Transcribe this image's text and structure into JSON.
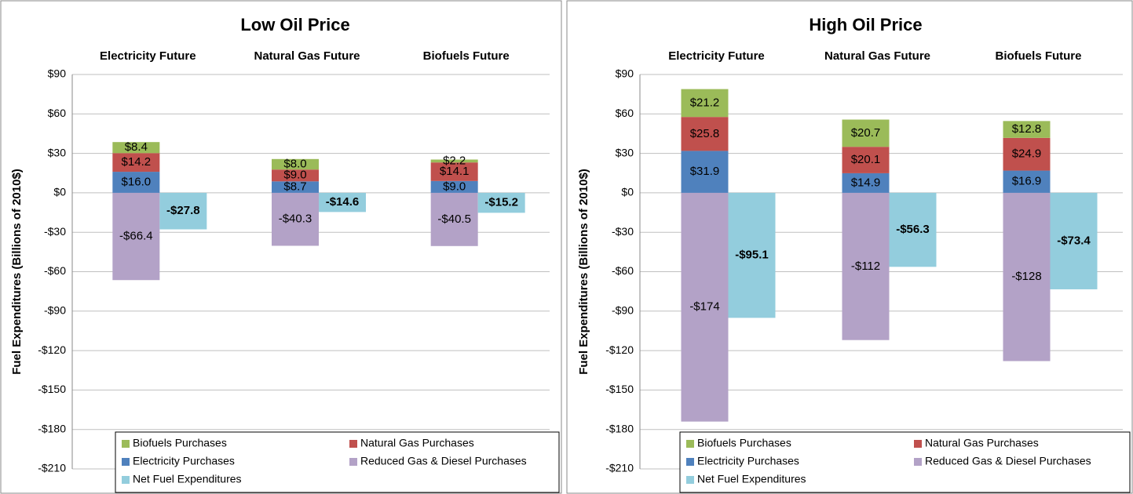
{
  "chart_data": [
    {
      "type": "bar",
      "title": "Low Oil Price",
      "ylabel": "Fuel Expenditures (Billions of 2010$)",
      "categories": [
        "Electricity Future",
        "Natural Gas Future",
        "Biofuels Future"
      ],
      "ylim": [
        -210,
        90
      ],
      "yticks": [
        {
          "value": 90,
          "label": "$90"
        },
        {
          "value": 60,
          "label": "$60"
        },
        {
          "value": 30,
          "label": "$30"
        },
        {
          "value": 0,
          "label": "$0"
        },
        {
          "value": -30,
          "label": "-$30"
        },
        {
          "value": -60,
          "label": "-$60"
        },
        {
          "value": -90,
          "label": "-$90"
        },
        {
          "value": -120,
          "label": "-$120"
        },
        {
          "value": -150,
          "label": "-$150"
        },
        {
          "value": -180,
          "label": "-$180"
        },
        {
          "value": -210,
          "label": "-$210"
        }
      ],
      "grid": true,
      "legend": "bottom",
      "series": [
        {
          "name": "Biofuels Purchases",
          "color": "#9bbb59",
          "values": [
            8.4,
            8.0,
            2.2
          ],
          "value_labels": [
            "$8.4",
            "$8.0",
            "$2.2"
          ]
        },
        {
          "name": "Natural Gas Purchases",
          "color": "#c0504d",
          "values": [
            14.2,
            9.0,
            14.1
          ],
          "value_labels": [
            "$14.2",
            "$9.0",
            "$14.1"
          ]
        },
        {
          "name": "Electricity Purchases",
          "color": "#4f81bd",
          "values": [
            16.0,
            8.7,
            9.0
          ],
          "value_labels": [
            "$16.0",
            "$8.7",
            "$9.0"
          ]
        },
        {
          "name": "Reduced Gas & Diesel Purchases",
          "color": "#b3a2c7",
          "values": [
            -66.4,
            -40.3,
            -40.5
          ],
          "value_labels": [
            "-$66.4",
            "-$40.3",
            "-$40.5"
          ]
        },
        {
          "name": "Net Fuel Expenditures",
          "color": "#93cddd",
          "values": [
            -27.8,
            -14.6,
            -15.2
          ],
          "value_labels": [
            "-$27.8",
            "-$14.6",
            "-$15.2"
          ]
        }
      ]
    },
    {
      "type": "bar",
      "title": "High Oil Price",
      "ylabel": "Fuel Expenditures (Billions of 2010$)",
      "categories": [
        "Electricity Future",
        "Natural Gas Future",
        "Biofuels Future"
      ],
      "ylim": [
        -210,
        90
      ],
      "yticks": [
        {
          "value": 90,
          "label": "$90"
        },
        {
          "value": 60,
          "label": "$60"
        },
        {
          "value": 30,
          "label": "$30"
        },
        {
          "value": 0,
          "label": "$0"
        },
        {
          "value": -30,
          "label": "-$30"
        },
        {
          "value": -60,
          "label": "-$60"
        },
        {
          "value": -90,
          "label": "-$90"
        },
        {
          "value": -120,
          "label": "-$120"
        },
        {
          "value": -150,
          "label": "-$150"
        },
        {
          "value": -180,
          "label": "-$180"
        },
        {
          "value": -210,
          "label": "-$210"
        }
      ],
      "grid": true,
      "legend": "bottom",
      "series": [
        {
          "name": "Biofuels Purchases",
          "color": "#9bbb59",
          "values": [
            21.2,
            20.7,
            12.8
          ],
          "value_labels": [
            "$21.2",
            "$20.7",
            "$12.8"
          ]
        },
        {
          "name": "Natural Gas Purchases",
          "color": "#c0504d",
          "values": [
            25.8,
            20.1,
            24.9
          ],
          "value_labels": [
            "$25.8",
            "$20.1",
            "$24.9"
          ]
        },
        {
          "name": "Electricity Purchases",
          "color": "#4f81bd",
          "values": [
            31.9,
            14.9,
            16.9
          ],
          "value_labels": [
            "$31.9",
            "$14.9",
            "$16.9"
          ]
        },
        {
          "name": "Reduced Gas & Diesel Purchases",
          "color": "#b3a2c7",
          "values": [
            -174,
            -112,
            -128
          ],
          "value_labels": [
            "-$174",
            "-$112",
            "-$128"
          ]
        },
        {
          "name": "Net Fuel Expenditures",
          "color": "#93cddd",
          "values": [
            -95.1,
            -56.3,
            -73.4
          ],
          "value_labels": [
            "-$95.1",
            "-$56.3",
            "-$73.4"
          ]
        }
      ]
    }
  ]
}
